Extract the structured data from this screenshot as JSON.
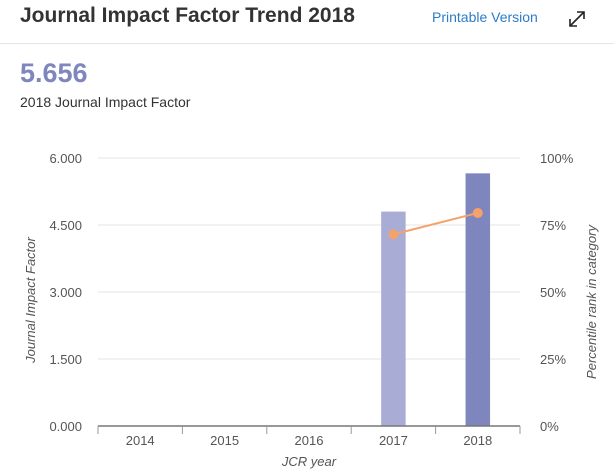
{
  "header": {
    "title": "Journal Impact Factor Trend 2018",
    "printable_label": "Printable Version",
    "expand_icon": "expand-arrows-icon"
  },
  "summary": {
    "value": "5.656",
    "label": "2018 Journal Impact Factor"
  },
  "colors": {
    "bar_2017": "#a9acd4",
    "bar_2018": "#7e86bd",
    "percentile_line": "#f4a26b",
    "link": "#2d7cc6"
  },
  "chart_data": {
    "type": "bar",
    "categories": [
      "2014",
      "2015",
      "2016",
      "2017",
      "2018"
    ],
    "xlabel": "JCR year",
    "ylabel": "Journal Impact Factor",
    "y2label": "Percentile rank in category",
    "ylim": [
      0,
      6
    ],
    "y2lim": [
      0,
      100
    ],
    "yticks": [
      "0.000",
      "1.500",
      "3.000",
      "4.500",
      "6.000"
    ],
    "y2ticks": [
      "0%",
      "25%",
      "50%",
      "75%",
      "100%"
    ],
    "grid": true,
    "series": [
      {
        "kind": "bar",
        "values": [
          null,
          null,
          null,
          4.8,
          5.656
        ]
      },
      {
        "kind": "line",
        "axis": "right",
        "values": [
          null,
          null,
          null,
          71.5,
          79.5
        ]
      }
    ]
  }
}
